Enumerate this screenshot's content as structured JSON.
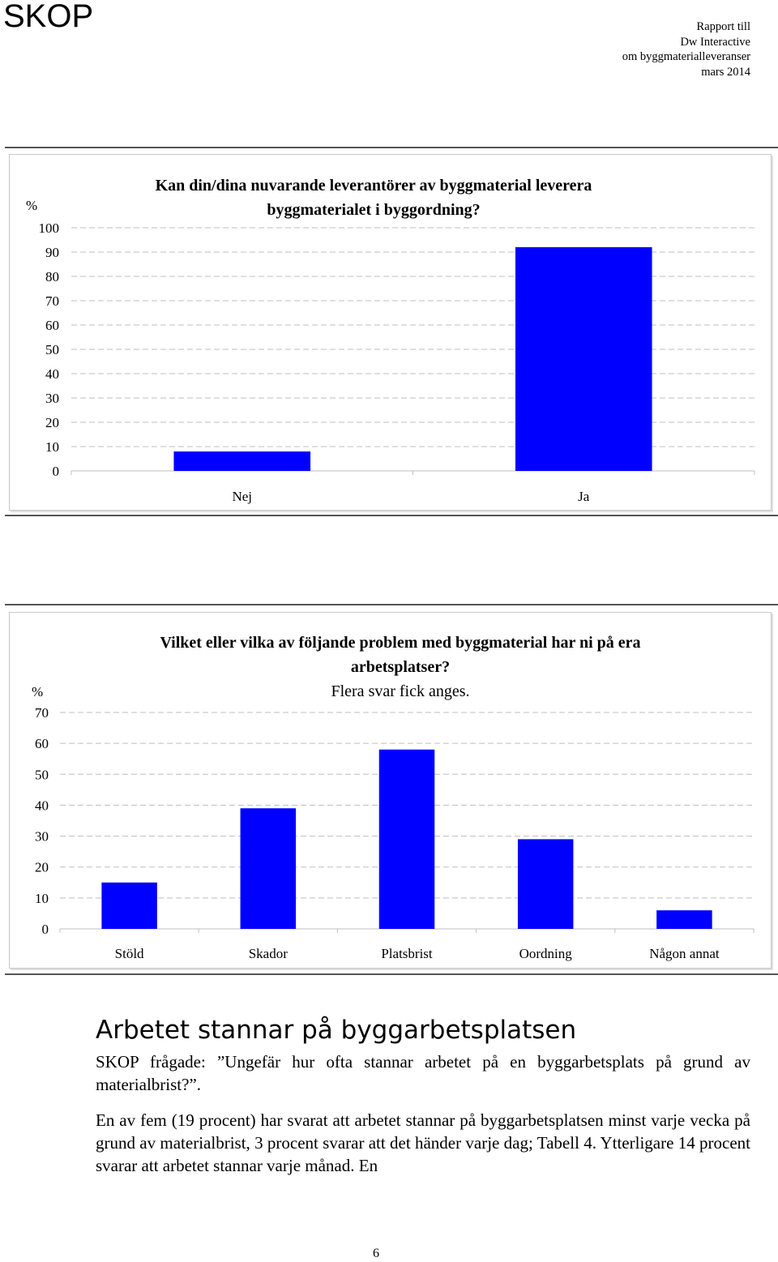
{
  "header": {
    "logo": "SKOP",
    "report_lines": [
      "Rapport till",
      "Dw Interactive",
      "om byggmaterialleveranser",
      "mars 2014"
    ]
  },
  "colors": {
    "bar": "#0000ff",
    "grid": "#bfbfbf",
    "frame": "#c8c8c8"
  },
  "chart_data": [
    {
      "type": "bar",
      "title": "Kan din/dina nuvarande leverantörer av byggmaterial leverera byggmaterialet i byggordning?",
      "title_lines": [
        "Kan din/dina nuvarande leverantörer av byggmaterial leverera",
        "byggmaterialet i byggordning?"
      ],
      "subtitle": "",
      "ylabel": "%",
      "categories": [
        "Nej",
        "Ja"
      ],
      "values": [
        8,
        92
      ],
      "ylim": [
        0,
        100
      ],
      "yticks": [
        "0",
        "10",
        "20",
        "30",
        "40",
        "50",
        "60",
        "70",
        "80",
        "90",
        "100"
      ],
      "grid": true,
      "legend": "none"
    },
    {
      "type": "bar",
      "title": "Vilket eller vilka av följande problem med byggmaterial har ni på era arbetsplatser?",
      "title_lines": [
        "Vilket eller vilka av följande problem med byggmaterial har ni på era",
        "arbetsplatser?"
      ],
      "subtitle": "Flera svar fick anges.",
      "ylabel": "%",
      "categories": [
        "Stöld",
        "Skador",
        "Platsbrist",
        "Oordning",
        "Någon annat"
      ],
      "values": [
        15,
        39,
        58,
        29,
        6
      ],
      "ylim": [
        0,
        70
      ],
      "yticks": [
        "0",
        "10",
        "20",
        "30",
        "40",
        "50",
        "60",
        "70"
      ],
      "grid": true,
      "legend": "none"
    }
  ],
  "section": {
    "title": "Arbetet stannar på byggarbetsplatsen",
    "question": "SKOP frågade: ”Ungefär hur ofta stannar arbetet på en byggarbetsplats på grund av materialbrist?”.",
    "body": "En av fem (19 procent) har svarat att arbetet stannar på byggarbetsplatsen minst varje vecka på grund av materialbrist, 3 procent svarar att det händer varje dag; Tabell 4. Ytterligare 14 procent svarar att arbetet stannar varje månad. En"
  },
  "page_number": "6"
}
